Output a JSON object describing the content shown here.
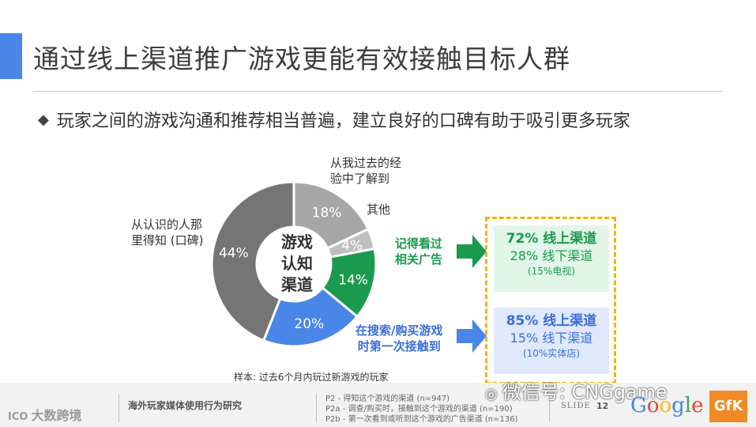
{
  "title": "通过线上渠道推广游戏更能有效接触目标人群",
  "bullet": {
    "icon": "diamond-bullet-icon",
    "text": "玩家之间的游戏沟通和推荐相当普遍，建立良好的口碑有助于吸引更多玩家"
  },
  "chart_data": {
    "type": "pie",
    "center_label": [
      "游戏",
      "认知",
      "渠道"
    ],
    "slices": [
      {
        "label": "从认识的人那里得知 (口碑)",
        "value": 44,
        "display": "44%",
        "color": "#757575"
      },
      {
        "label": "从我过去的经验中了解到",
        "value": 18,
        "display": "18%",
        "color": "#a6a6a6"
      },
      {
        "label": "其他",
        "value": 4,
        "display": "4%",
        "color": "#bfbfbf"
      },
      {
        "label": "记得看过相关广告",
        "value": 14,
        "display": "14%",
        "color": "#1a9a4e"
      },
      {
        "label": "在搜索/购买游戏时第一次接触到",
        "value": 20,
        "display": "20%",
        "color": "#4a86e8"
      }
    ]
  },
  "labels": {
    "wom_line1": "从认识的人那",
    "wom_line2": "里得知 (口碑)",
    "experience_line1": "从我过去的经",
    "experience_line2": "验中了解到",
    "other": "其他",
    "ad_line1": "记得看过",
    "ad_line2": "相关广告",
    "search_line1": "在搜索/购买游戏",
    "search_line2": "时第一次接触到"
  },
  "boxes": {
    "ad": {
      "main": "72% 线上渠道",
      "sub": "28% 线下渠道",
      "note": "(15%电视)"
    },
    "search": {
      "main": "85% 线上渠道",
      "sub": "15% 线下渠道",
      "note": "(10%实体店)"
    }
  },
  "colors": {
    "accent": "#4a86e8",
    "green": "#1a9a4e",
    "blue": "#3b6fd6",
    "highlight_border": "#f0b400"
  },
  "sample_note": "样本: 过去6个月内玩过新游戏的玩家",
  "footer": {
    "brand": "大数跨境",
    "report_name": "海外玩家媒体使用行为研究",
    "sources": [
      "P2 - 得知这个游戏的渠道 (n=947)",
      "P2a - 调查/购买时，接触到这个游戏的渠道 (n=190)",
      "P2b - 第一次看到或听到这个游戏的广告渠道 (n=136)"
    ],
    "slide_word": "SLIDE",
    "slide_number": "12",
    "wechat": "微信号: CNGgame",
    "google": "Google",
    "gfk": "GfK"
  }
}
